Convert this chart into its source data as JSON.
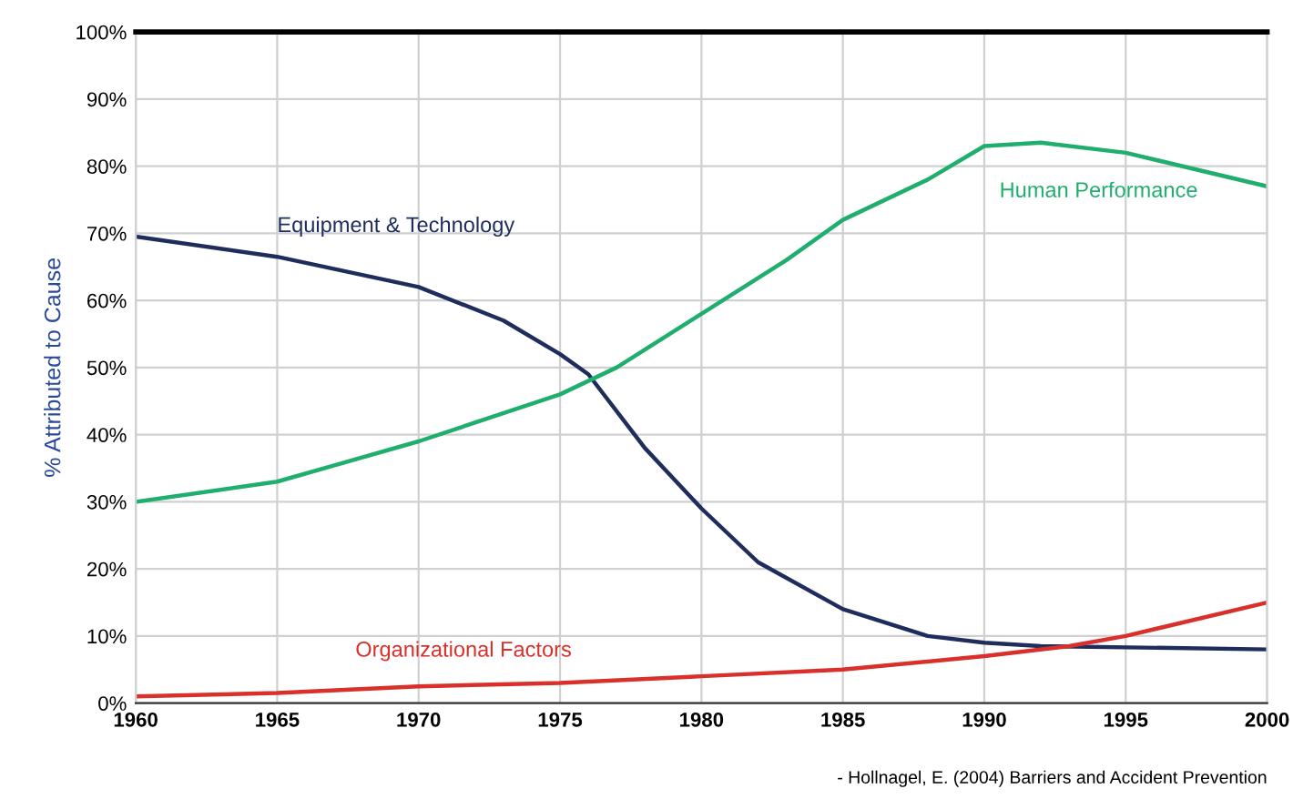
{
  "chart_data": {
    "type": "line",
    "ylabel": "% Attributed to Cause",
    "xlim": [
      1960,
      2000
    ],
    "ylim": [
      0,
      100
    ],
    "xticks": [
      1960,
      1965,
      1970,
      1975,
      1980,
      1985,
      1990,
      1995,
      2000
    ],
    "yticks": [
      {
        "value": 0,
        "label": "0%"
      },
      {
        "value": 10,
        "label": "10%"
      },
      {
        "value": 20,
        "label": "20%"
      },
      {
        "value": 30,
        "label": "30%"
      },
      {
        "value": 40,
        "label": "40%"
      },
      {
        "value": 50,
        "label": "50%"
      },
      {
        "value": 60,
        "label": "60%"
      },
      {
        "value": 70,
        "label": "70%"
      },
      {
        "value": 80,
        "label": "80%"
      },
      {
        "value": 90,
        "label": "90%"
      },
      {
        "value": 100,
        "label": "100%"
      }
    ],
    "grid": true,
    "legend": false,
    "marker": "none",
    "line_style": "solid",
    "series": [
      {
        "name": "Equipment & Technology",
        "color": "#1f2d5c",
        "x": [
          1960,
          1965,
          1970,
          1973,
          1975,
          1976,
          1978,
          1980,
          1982,
          1985,
          1988,
          1990,
          1992,
          2000
        ],
        "values": [
          69.5,
          66.5,
          62,
          57,
          52,
          49,
          38,
          29,
          21,
          14,
          10,
          9,
          8.5,
          8
        ]
      },
      {
        "name": "Human Performance",
        "color": "#1fae6e",
        "x": [
          1960,
          1965,
          1970,
          1975,
          1977,
          1980,
          1983,
          1985,
          1988,
          1990,
          1992,
          1995,
          2000
        ],
        "values": [
          30,
          33,
          39,
          46,
          50,
          58,
          66,
          72,
          78,
          83,
          83.5,
          82,
          77
        ]
      },
      {
        "name": "Organizational Factors",
        "color": "#d9302c",
        "x": [
          1960,
          1965,
          1970,
          1975,
          1980,
          1985,
          1990,
          1993,
          1995,
          2000
        ],
        "values": [
          1,
          1.5,
          2.5,
          3,
          4,
          5,
          7,
          8.5,
          10,
          15
        ]
      }
    ],
    "annotations": [
      "- Hollnagel, E. (2004) Barriers and Accident Prevention"
    ]
  }
}
